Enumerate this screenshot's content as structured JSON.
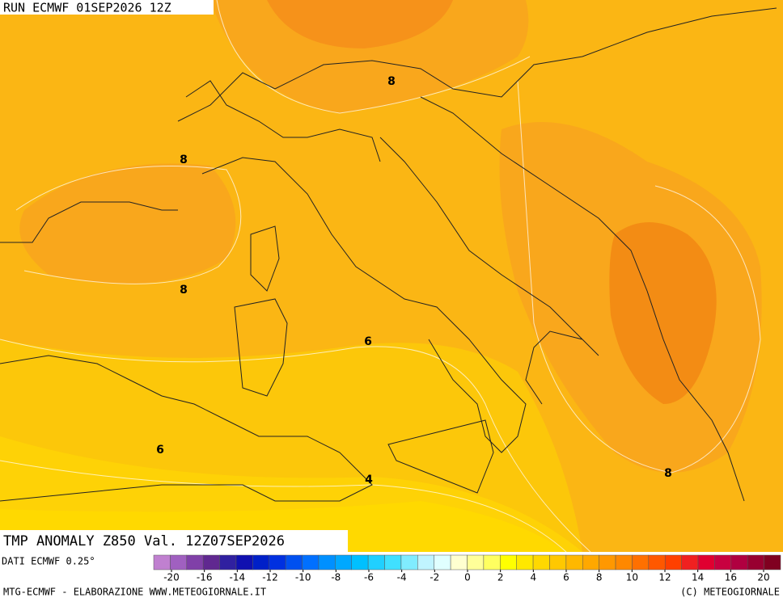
{
  "header": {
    "run": "RUN ECMWF 01SEP2026 12Z"
  },
  "title": "TMP ANOMALY Z850 Val. 12Z07SEP2026",
  "contour_labels": [
    "8",
    "8",
    "8",
    "6",
    "6",
    "4",
    "8"
  ],
  "source_label": "DATI ECMWF 0.25°",
  "colorbar": {
    "ticks": [
      -20,
      -16,
      -14,
      -12,
      -10,
      -8,
      -6,
      -4,
      -2,
      0,
      2,
      4,
      6,
      8,
      10,
      12,
      14,
      16,
      20
    ],
    "colors": [
      "#c080d0",
      "#a060c0",
      "#8040a8",
      "#602890",
      "#3020a0",
      "#1010b0",
      "#0020c8",
      "#0030e0",
      "#0050f0",
      "#0070ff",
      "#0090ff",
      "#00a8ff",
      "#00c0ff",
      "#20d0ff",
      "#40e0ff",
      "#80ecff",
      "#c0f4ff",
      "#e0ffff",
      "#ffffd0",
      "#ffff99",
      "#ffff60",
      "#ffff00",
      "#ffe800",
      "#ffd800",
      "#ffc800",
      "#ffb800",
      "#ffa800",
      "#ff9800",
      "#ff8800",
      "#ff7000",
      "#ff5800",
      "#ff4000",
      "#f02020",
      "#e00030",
      "#c80040",
      "#b00040",
      "#980030",
      "#800020"
    ]
  },
  "footer": {
    "left": "MTG-ECMWF - ELABORAZIONE WWW.METEOGIORNALE.IT",
    "right": "(C) METEOGIORNALE"
  }
}
